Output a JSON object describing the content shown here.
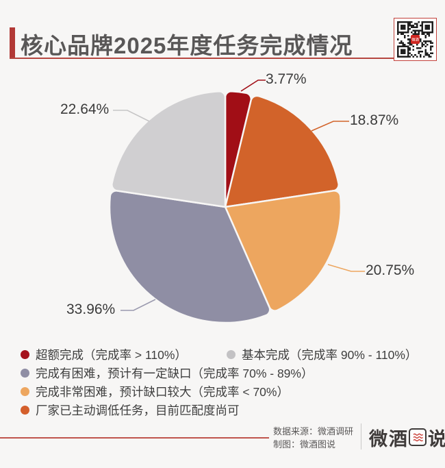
{
  "page": {
    "background": "#f7f6f5"
  },
  "header": {
    "title": "核心品牌2025年度任务完成情况",
    "accent_color": "#b23936",
    "title_color": "#595757"
  },
  "chart_data": {
    "type": "pie",
    "title": "核心品牌2025年度任务完成情况",
    "unit": "%",
    "start_angle_deg": 0,
    "direction": "clockwise",
    "legend_position": "bottom-left",
    "slices": [
      {
        "name": "超额完成（完成率 > 110%）",
        "value": 3.77,
        "display": "3.77%",
        "color": "#a10e16"
      },
      {
        "name": "厂家已主动调低任务，目前匹配度尚可",
        "value": 18.87,
        "display": "18.87%",
        "color": "#d2632a"
      },
      {
        "name": "完成非常困难，预计缺口较大（完成率 < 70%）",
        "value": 20.75,
        "display": "20.75%",
        "color": "#eda65f"
      },
      {
        "name": "完成有困难，预计有一定缺口（完成率 70% - 89%）",
        "value": 33.96,
        "display": "33.96%",
        "color": "#8f8ea4"
      },
      {
        "name": "基本完成（完成率 90% - 110%）",
        "value": 22.64,
        "display": "22.64%",
        "color": "#d0cfd1"
      }
    ]
  },
  "legend": {
    "items": [
      {
        "label": "超额完成（完成率 > 110%）",
        "color": "#a5131c"
      },
      {
        "label": "基本完成（完成率 90% - 110%）",
        "color": "#c3c2c4"
      },
      {
        "label": "完成有困难，预计有一定缺口（完成率 70% - 89%）",
        "color": "#8f8ea4"
      },
      {
        "label": "完成非常困难，预计缺口较大（完成率 < 70%）",
        "color": "#eda65f"
      },
      {
        "label": "厂家已主动调低任务，目前匹配度尚可",
        "color": "#d45f2b"
      }
    ]
  },
  "footer": {
    "source_line": "数据来源：微酒调研",
    "credit_line": "制图：微酒图说",
    "logo_text": "微酒图说",
    "line_color": "#c0544c"
  }
}
